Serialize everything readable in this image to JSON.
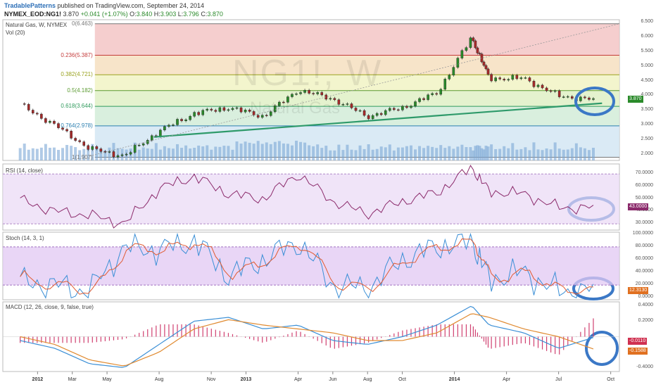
{
  "header": {
    "publisher": "TradablePatterns",
    "published_text": "published on TradingView.com, September 24, 2014",
    "symbol": "NYMEX_EOD:NG1!",
    "last": "3.870",
    "change": "+0.041 (+1.07%)",
    "open_label": "O:",
    "open": "3.840",
    "high_label": "H:",
    "high": "3.903",
    "low_label": "L:",
    "low": "3.796",
    "close_label": "C:",
    "close": "3.870"
  },
  "main_pane": {
    "label": "Natural Gas, W, NYMEX",
    "volume_label": "Vol (20)",
    "watermark_symbol": "NG1!, W",
    "watermark_name": "Natural Gas",
    "price_ticks": [
      "6.500",
      "6.000",
      "5.500",
      "5.000",
      "4.500",
      "4.000",
      "3.500",
      "3.000",
      "2.500",
      "2.000"
    ],
    "last_price_tag": "3.870"
  },
  "fibonacci": [
    {
      "label": "0(6.463)",
      "value": 6.463,
      "color": "#777777"
    },
    {
      "label": "0.236(5.387)",
      "value": 5.387,
      "color": "#c43b3b"
    },
    {
      "label": "0.382(4.721)",
      "value": 4.721,
      "color": "#9aa21f"
    },
    {
      "label": "0.5(4.182)",
      "value": 4.182,
      "color": "#5a9a30"
    },
    {
      "label": "0.618(3.644)",
      "value": 3.644,
      "color": "#2f9a5c"
    },
    {
      "label": "0.764(2.978)",
      "value": 2.978,
      "color": "#2b7fb0"
    },
    {
      "label": "1(1.907)",
      "value": 1.907,
      "color": "#777777"
    }
  ],
  "rsi_pane": {
    "label": "RSI (14, close)",
    "ticks": [
      "70.0000",
      "60.0000",
      "50.0000",
      "40.0000",
      "30.0000"
    ],
    "last_tag": "43.0000"
  },
  "stoch_pane": {
    "label": "Stoch (14, 3, 1)",
    "ticks": [
      "100.0000",
      "80.0000",
      "60.0000",
      "40.0000",
      "20.0000",
      "0.0000"
    ],
    "last_tag": "12.3130"
  },
  "macd_pane": {
    "label": "MACD (12, 26, close, 9, false, true)",
    "ticks": [
      "0.4000",
      "0.2000",
      "-0.4000"
    ],
    "tag_macd": "-0.0110",
    "tag_signal": "-0.1588"
  },
  "x_axis": [
    {
      "label": "2012",
      "bold": true
    },
    {
      "label": "Mar",
      "bold": false
    },
    {
      "label": "May",
      "bold": false
    },
    {
      "label": "Aug",
      "bold": false
    },
    {
      "label": "Nov",
      "bold": false
    },
    {
      "label": "2013",
      "bold": true
    },
    {
      "label": "Apr",
      "bold": false
    },
    {
      "label": "Jun",
      "bold": false
    },
    {
      "label": "Aug",
      "bold": false
    },
    {
      "label": "Oct",
      "bold": false
    },
    {
      "label": "2014",
      "bold": true
    },
    {
      "label": "Apr",
      "bold": false
    },
    {
      "label": "Jul",
      "bold": false
    },
    {
      "label": "Oct",
      "bold": false
    }
  ],
  "chart_data": {
    "type": "line",
    "title": "Natural Gas, W, NYMEX",
    "x_dates": [
      "2011-12",
      "2012-02",
      "2012-04",
      "2012-06",
      "2012-08",
      "2012-10",
      "2012-12",
      "2013-02",
      "2013-04",
      "2013-06",
      "2013-08",
      "2013-10",
      "2013-12",
      "2014-02",
      "2014-03",
      "2014-05",
      "2014-07",
      "2014-09"
    ],
    "series": [
      {
        "name": "Natural Gas",
        "values": [
          3.7,
          3.0,
          2.2,
          1.95,
          2.8,
          3.4,
          3.6,
          3.3,
          4.2,
          3.9,
          3.3,
          3.6,
          4.1,
          6.0,
          4.6,
          4.6,
          4.0,
          3.87
        ]
      },
      {
        "name": "RSI (14, close)",
        "values": [
          49,
          40,
          37,
          30,
          58,
          68,
          54,
          50,
          70,
          48,
          38,
          48,
          55,
          75,
          56,
          54,
          43,
          43
        ]
      },
      {
        "name": "Stoch (14, 3, 1)",
        "values": [
          25,
          20,
          10,
          80,
          75,
          90,
          35,
          60,
          88,
          20,
          15,
          60,
          80,
          90,
          30,
          40,
          10,
          12.3
        ]
      },
      {
        "name": "MACD",
        "values": [
          -0.05,
          -0.15,
          -0.35,
          -0.4,
          -0.1,
          0.2,
          0.25,
          0.1,
          0.15,
          -0.05,
          -0.1,
          0.0,
          0.15,
          0.4,
          0.15,
          0.05,
          -0.15,
          -0.011
        ]
      },
      {
        "name": "Signal",
        "values": [
          0.0,
          -0.1,
          -0.3,
          -0.38,
          -0.2,
          0.1,
          0.22,
          0.15,
          0.1,
          0.05,
          -0.05,
          -0.05,
          0.05,
          0.3,
          0.25,
          0.1,
          0.0,
          -0.159
        ]
      }
    ],
    "ylim_price": [
      1.8,
      6.6
    ],
    "ylim_rsi": [
      25,
      78
    ],
    "ylim_stoch": [
      -3,
      103
    ],
    "ylim_macd": [
      -0.45,
      0.45
    ]
  }
}
